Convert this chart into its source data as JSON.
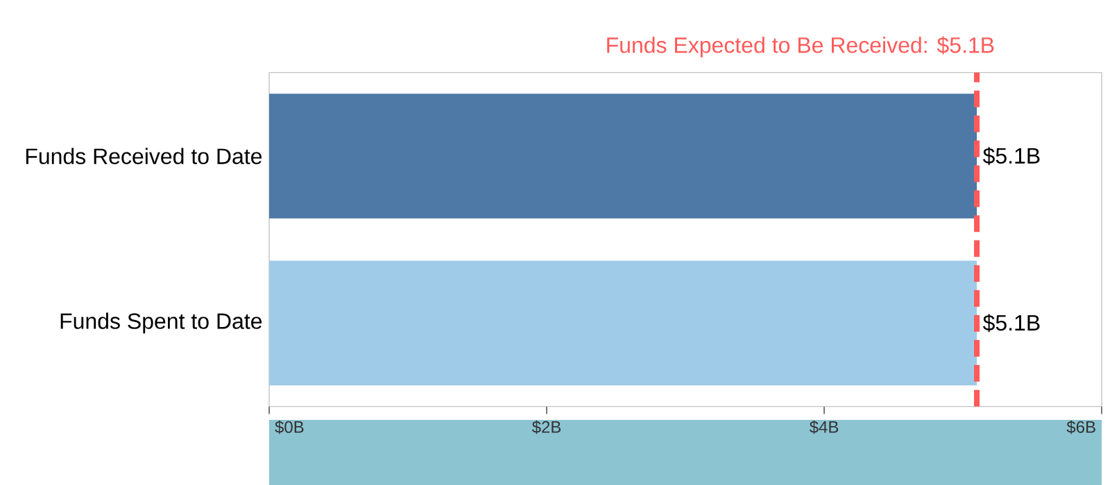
{
  "chart_data": {
    "type": "bar",
    "orientation": "horizontal",
    "categories": [
      "Funds Received to Date",
      "Funds Spent to Date"
    ],
    "values": [
      5.1,
      5.1
    ],
    "colors": [
      "#4e79a7",
      "#a0cbe8"
    ],
    "value_labels": [
      "$5.1B",
      "$5.1B"
    ],
    "xlim": [
      0,
      6
    ],
    "xticks": [
      {
        "value": 0,
        "label": "$0B"
      },
      {
        "value": 2,
        "label": "$2B"
      },
      {
        "value": 4,
        "label": "$4B"
      },
      {
        "value": 6,
        "label": "$6B"
      }
    ],
    "ref_lines": [
      {
        "axis": "x",
        "value": 5.1,
        "label": "Funds Expected to Be Received: $5.1B",
        "color": "#ff5a5a",
        "line_style": "dashed"
      }
    ]
  }
}
